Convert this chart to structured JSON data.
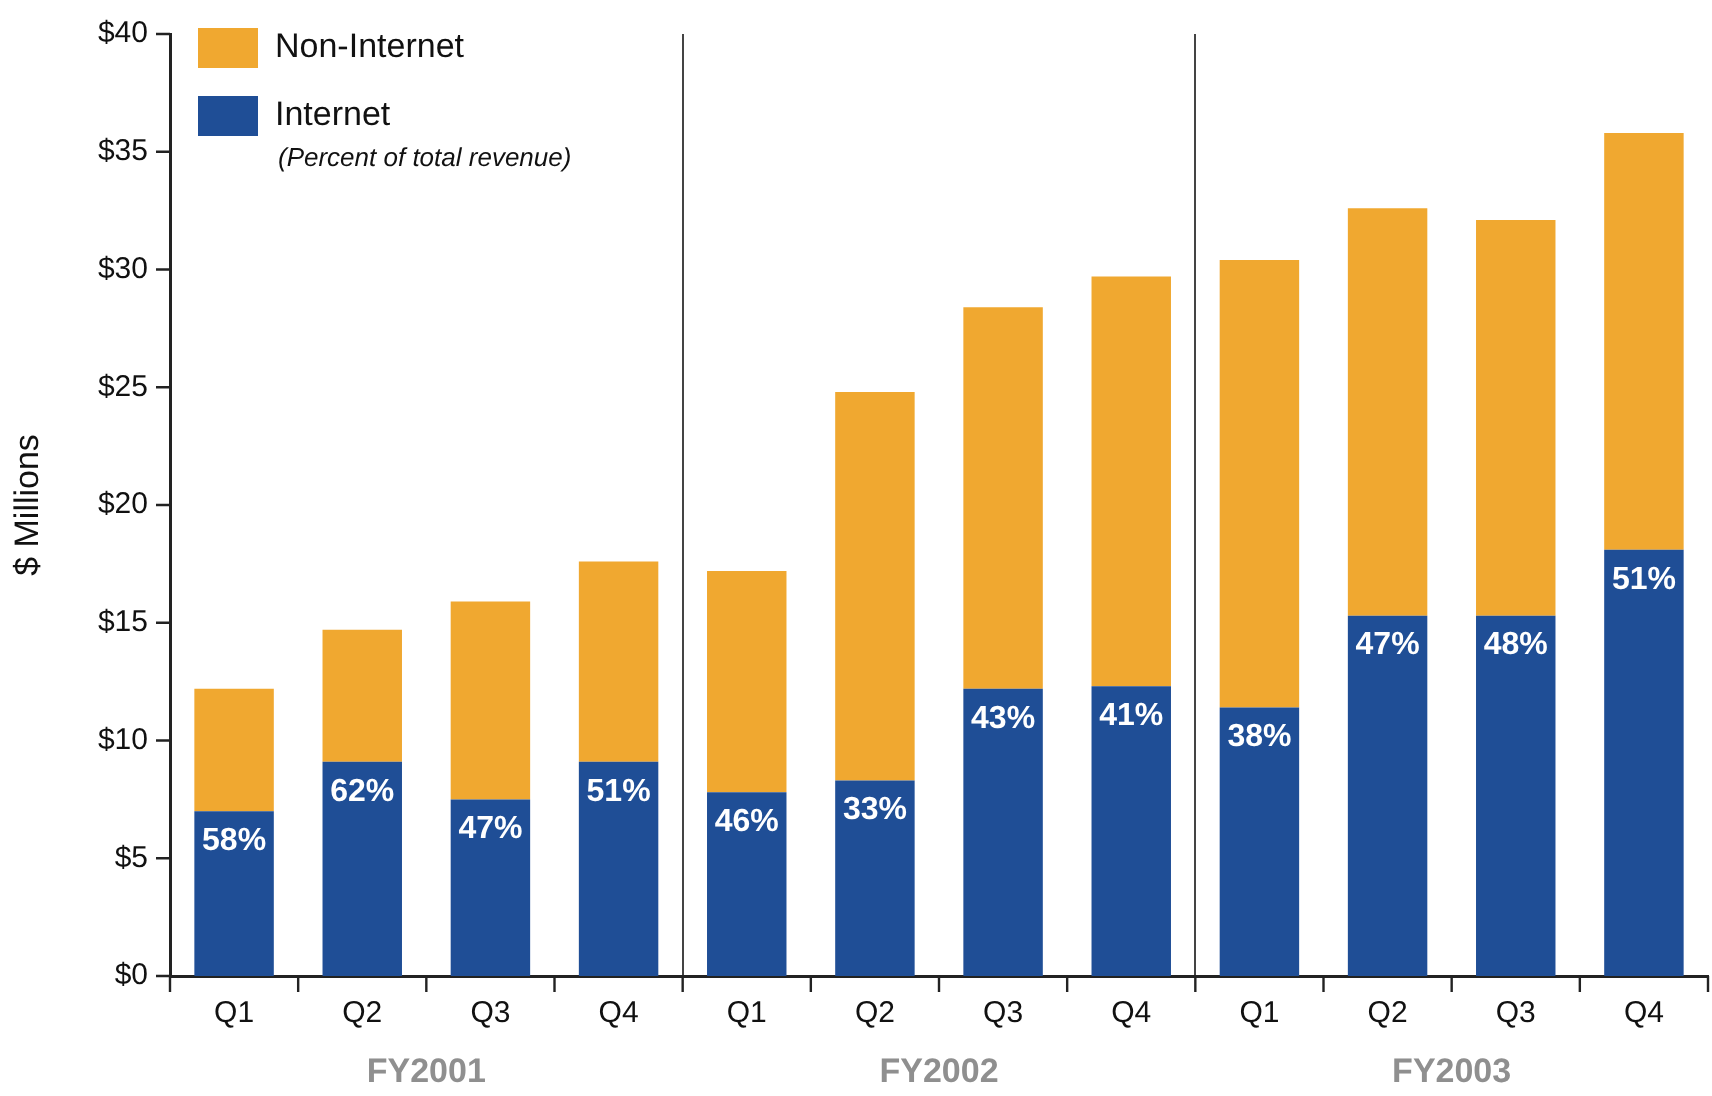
{
  "chart_data": {
    "type": "bar",
    "stacked": true,
    "ylabel": "$ Millions",
    "categories": [
      "Q1",
      "Q2",
      "Q3",
      "Q4",
      "Q1",
      "Q2",
      "Q3",
      "Q4",
      "Q1",
      "Q2",
      "Q3",
      "Q4"
    ],
    "series": [
      {
        "name": "Internet",
        "color": "#1f4e96",
        "values": [
          7.0,
          9.1,
          7.5,
          9.1,
          7.8,
          8.3,
          12.2,
          12.3,
          11.4,
          15.3,
          15.3,
          18.1
        ]
      },
      {
        "name": "Non-Internet",
        "color": "#f0a830",
        "values": [
          5.2,
          5.6,
          8.4,
          8.5,
          9.4,
          16.5,
          16.2,
          17.4,
          19.0,
          17.3,
          16.8,
          17.7
        ]
      }
    ],
    "ylim": [
      0,
      40
    ],
    "yticks": [
      {
        "value": 0,
        "label": "$0"
      },
      {
        "value": 5,
        "label": "$5"
      },
      {
        "value": 10,
        "label": "$10"
      },
      {
        "value": 15,
        "label": "$15"
      },
      {
        "value": 20,
        "label": "$20"
      },
      {
        "value": 25,
        "label": "$25"
      },
      {
        "value": 30,
        "label": "$30"
      },
      {
        "value": 35,
        "label": "$35"
      },
      {
        "value": 40,
        "label": "$40"
      }
    ],
    "legend": "top left",
    "annotations": [
      "(Percent of total revenue)",
      "FY2001",
      "FY2002",
      "FY2003",
      "58%",
      "62%",
      "47%",
      "51%",
      "46%",
      "33%",
      "43%",
      "41%",
      "38%",
      "47%",
      "48%",
      "51%"
    ]
  }
}
